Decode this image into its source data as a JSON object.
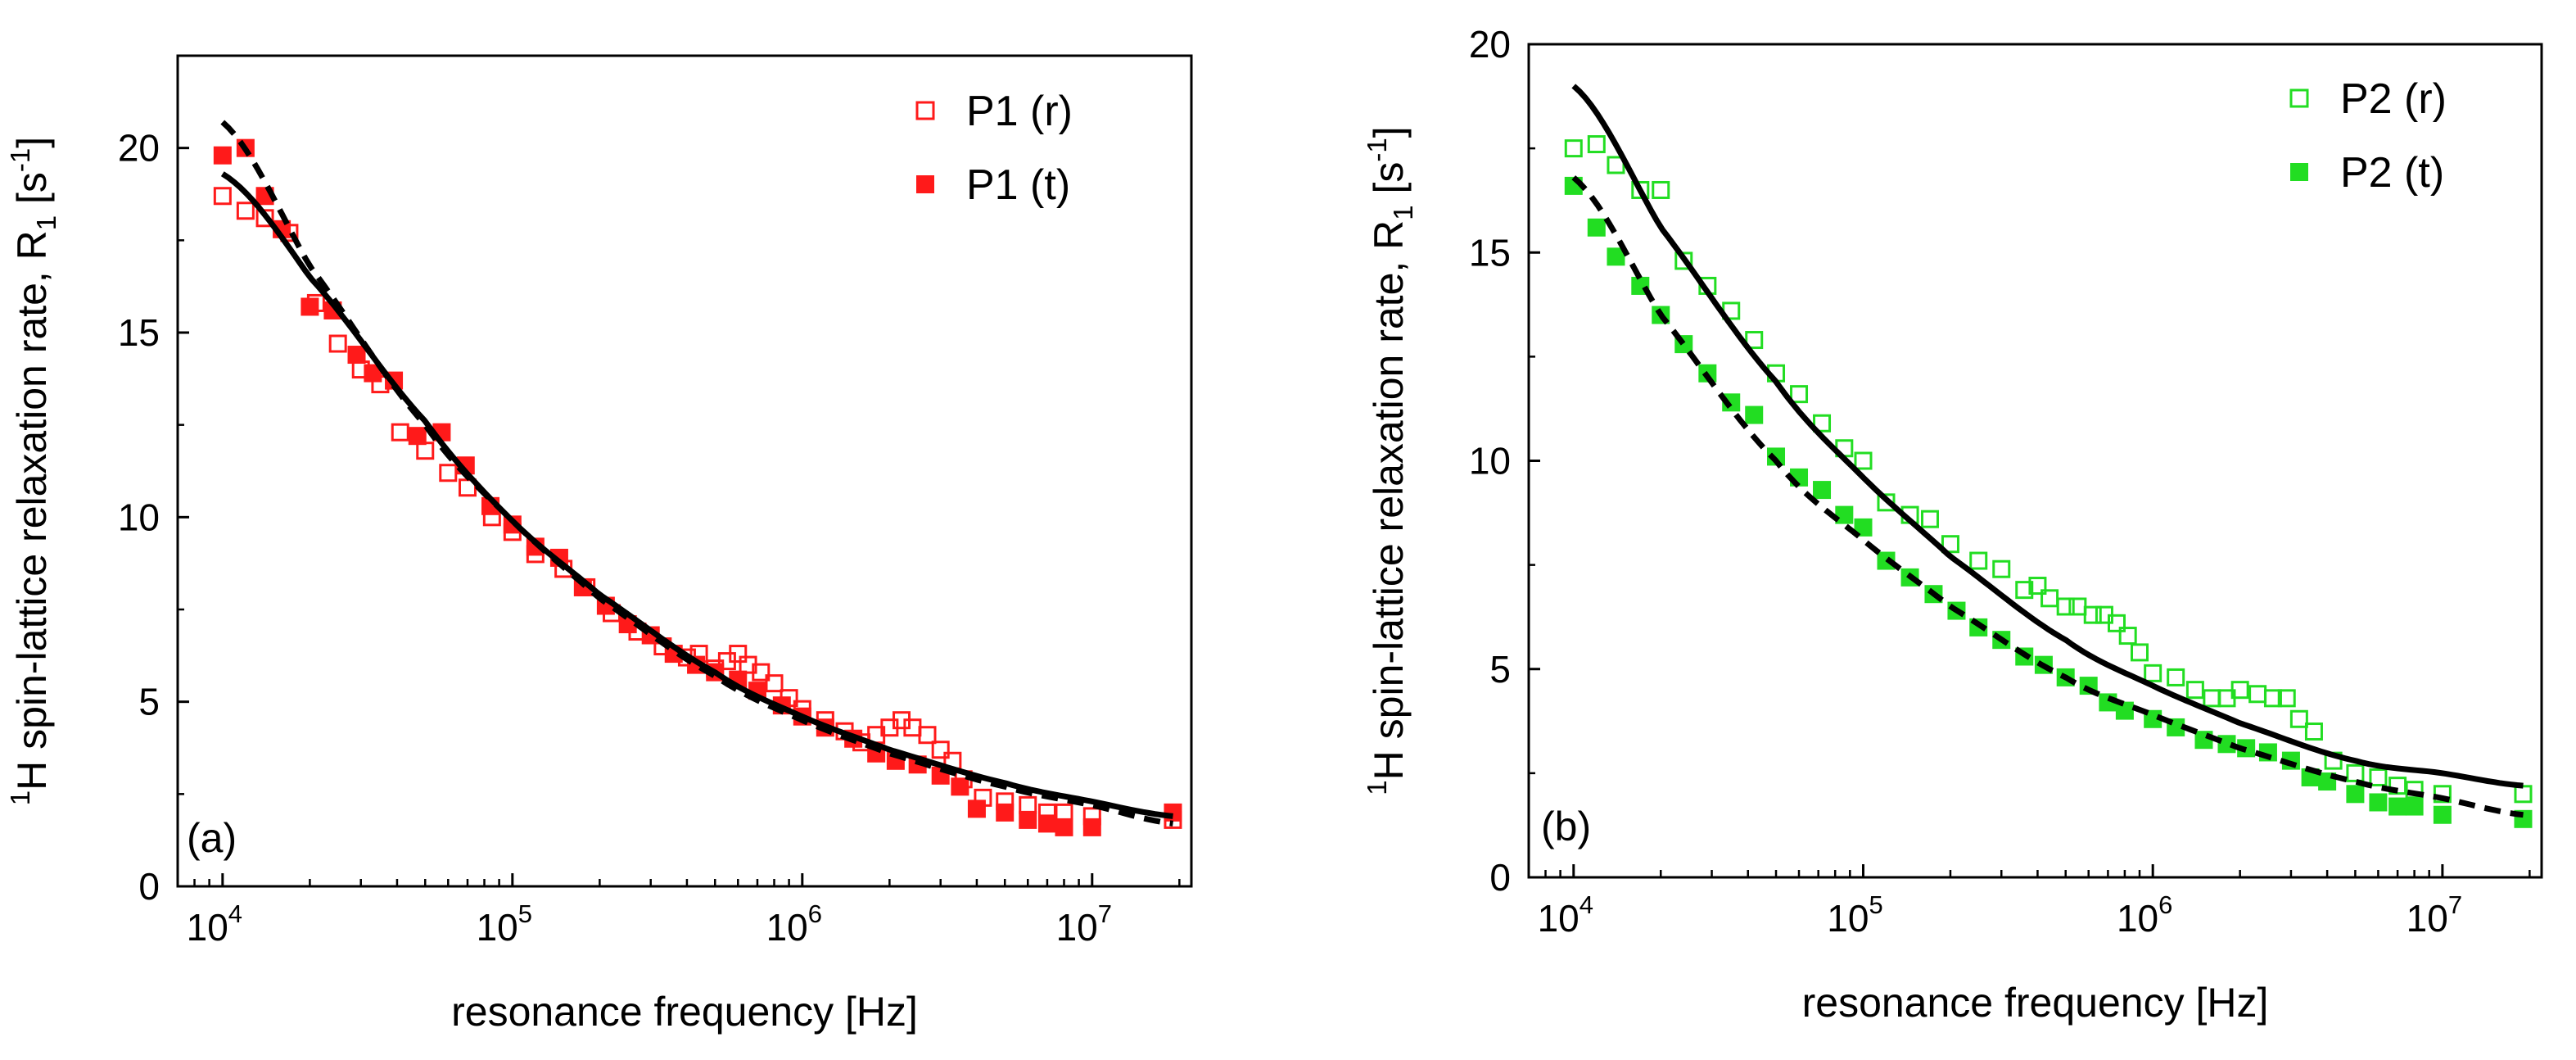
{
  "chart_data": [
    {
      "type": "scatter",
      "panel_label": "(a)",
      "xlabel": "resonance frequency [Hz]",
      "ylabel": {
        "base": "spin-lattice relaxation rate, R",
        "pre_superscript": "1",
        "pre_base": "H ",
        "subscript": "1",
        "unit_open": " [s",
        "unit_superscript": "-1",
        "unit_close": "]"
      },
      "x_scale": "log",
      "xlim": [
        7000,
        22000000
      ],
      "ylim": [
        0,
        22.5
      ],
      "x_ticks": [
        {
          "base": "10",
          "exp": "4",
          "value": 10000
        },
        {
          "base": "10",
          "exp": "5",
          "value": 100000
        },
        {
          "base": "10",
          "exp": "6",
          "value": 1000000
        },
        {
          "base": "10",
          "exp": "7",
          "value": 10000000
        }
      ],
      "y_ticks": [
        0,
        5,
        10,
        15,
        20
      ],
      "legend_position": "top-right",
      "series": [
        {
          "name": "P1 (r)",
          "marker": "open-square",
          "color": "#ff1a1a",
          "points": [
            [
              10000,
              18.7
            ],
            [
              12000,
              18.3
            ],
            [
              14000,
              18.1
            ],
            [
              17000,
              17.7
            ],
            [
              21000,
              15.8
            ],
            [
              25000,
              14.7
            ],
            [
              30000,
              14.0
            ],
            [
              35000,
              13.6
            ],
            [
              41000,
              12.3
            ],
            [
              50000,
              11.8
            ],
            [
              60000,
              11.2
            ],
            [
              70000,
              10.8
            ],
            [
              85000,
              10.0
            ],
            [
              100000,
              9.6
            ],
            [
              120000,
              9.0
            ],
            [
              150000,
              8.6
            ],
            [
              180000,
              8.1
            ],
            [
              220000,
              7.4
            ],
            [
              270000,
              6.9
            ],
            [
              330000,
              6.5
            ],
            [
              400000,
              6.2
            ],
            [
              440000,
              6.3
            ],
            [
              500000,
              5.9
            ],
            [
              550000,
              6.1
            ],
            [
              600000,
              6.3
            ],
            [
              650000,
              6.0
            ],
            [
              720000,
              5.8
            ],
            [
              800000,
              5.5
            ],
            [
              900000,
              5.1
            ],
            [
              1000000,
              4.8
            ],
            [
              1200000,
              4.5
            ],
            [
              1400000,
              4.2
            ],
            [
              1600000,
              3.9
            ],
            [
              1800000,
              4.1
            ],
            [
              2000000,
              4.3
            ],
            [
              2200000,
              4.5
            ],
            [
              2400000,
              4.3
            ],
            [
              2700000,
              4.1
            ],
            [
              3000000,
              3.7
            ],
            [
              3300000,
              3.4
            ],
            [
              3600000,
              2.9
            ],
            [
              4200000,
              2.4
            ],
            [
              5000000,
              2.3
            ],
            [
              6000000,
              2.2
            ],
            [
              7000000,
              2.0
            ],
            [
              8000000,
              2.0
            ],
            [
              10000000,
              1.9
            ],
            [
              19000000,
              1.8
            ]
          ]
        },
        {
          "name": "P1 (t)",
          "marker": "filled-square",
          "color": "#ff1a1a",
          "points": [
            [
              10000,
              19.8
            ],
            [
              12000,
              20.0
            ],
            [
              14000,
              18.7
            ],
            [
              16000,
              17.8
            ],
            [
              20000,
              15.7
            ],
            [
              24000,
              15.6
            ],
            [
              29000,
              14.4
            ],
            [
              33000,
              13.9
            ],
            [
              39000,
              13.7
            ],
            [
              47000,
              12.2
            ],
            [
              57000,
              12.3
            ],
            [
              69000,
              11.4
            ],
            [
              84000,
              10.3
            ],
            [
              100000,
              9.8
            ],
            [
              120000,
              9.2
            ],
            [
              145000,
              8.9
            ],
            [
              175000,
              8.1
            ],
            [
              210000,
              7.6
            ],
            [
              250000,
              7.1
            ],
            [
              300000,
              6.8
            ],
            [
              360000,
              6.3
            ],
            [
              430000,
              6.0
            ],
            [
              500000,
              5.8
            ],
            [
              600000,
              5.6
            ],
            [
              700000,
              5.3
            ],
            [
              850000,
              4.9
            ],
            [
              1000000,
              4.6
            ],
            [
              1200000,
              4.3
            ],
            [
              1500000,
              4.0
            ],
            [
              1800000,
              3.6
            ],
            [
              2100000,
              3.4
            ],
            [
              2500000,
              3.3
            ],
            [
              3000000,
              3.0
            ],
            [
              3500000,
              2.7
            ],
            [
              4000000,
              2.1
            ],
            [
              5000000,
              2.0
            ],
            [
              6000000,
              1.8
            ],
            [
              7000000,
              1.7
            ],
            [
              8000000,
              1.6
            ],
            [
              10000000,
              1.6
            ],
            [
              19000000,
              2.0
            ]
          ]
        }
      ],
      "fits": [
        {
          "style": "solid",
          "color": "#000000",
          "x": [
            10000,
            20000,
            50000,
            100000,
            200000,
            500000,
            1000000,
            2000000,
            5000000,
            10000000,
            19000000
          ],
          "y": [
            19.3,
            16.5,
            12.6,
            9.9,
            7.9,
            5.8,
            4.6,
            3.7,
            2.8,
            2.3,
            1.9
          ]
        },
        {
          "style": "dashed",
          "color": "#000000",
          "x": [
            10000,
            20000,
            50000,
            100000,
            200000,
            500000,
            1000000,
            2000000,
            5000000,
            10000000,
            19000000
          ],
          "y": [
            20.7,
            16.8,
            12.5,
            9.9,
            7.8,
            5.7,
            4.5,
            3.6,
            2.7,
            2.2,
            1.7
          ]
        }
      ]
    },
    {
      "type": "scatter",
      "panel_label": "(b)",
      "xlabel": "resonance frequency [Hz]",
      "ylabel": {
        "base": "spin-lattice relaxation rate, R",
        "pre_superscript": "1",
        "pre_base": "H ",
        "subscript": "1",
        "unit_open": " [s",
        "unit_superscript": "-1",
        "unit_close": "]"
      },
      "x_scale": "log",
      "xlim": [
        7000,
        22000000
      ],
      "ylim": [
        0,
        20
      ],
      "x_ticks": [
        {
          "base": "10",
          "exp": "4",
          "value": 10000
        },
        {
          "base": "10",
          "exp": "5",
          "value": 100000
        },
        {
          "base": "10",
          "exp": "6",
          "value": 1000000
        },
        {
          "base": "10",
          "exp": "7",
          "value": 10000000
        }
      ],
      "y_ticks": [
        0,
        5,
        10,
        15,
        20
      ],
      "legend_position": "top-right",
      "series": [
        {
          "name": "P2 (r)",
          "marker": "open-square",
          "color": "#22dd22",
          "points": [
            [
              10000,
              17.5
            ],
            [
              12000,
              17.6
            ],
            [
              14000,
              17.1
            ],
            [
              17000,
              16.5
            ],
            [
              20000,
              16.5
            ],
            [
              24000,
              14.8
            ],
            [
              29000,
              14.2
            ],
            [
              35000,
              13.6
            ],
            [
              42000,
              12.9
            ],
            [
              50000,
              12.1
            ],
            [
              60000,
              11.6
            ],
            [
              72000,
              10.9
            ],
            [
              86000,
              10.3
            ],
            [
              100000,
              10.0
            ],
            [
              120000,
              9.0
            ],
            [
              145000,
              8.7
            ],
            [
              170000,
              8.6
            ],
            [
              200000,
              8.0
            ],
            [
              250000,
              7.6
            ],
            [
              300000,
              7.4
            ],
            [
              360000,
              6.9
            ],
            [
              400000,
              7.0
            ],
            [
              440000,
              6.7
            ],
            [
              500000,
              6.5
            ],
            [
              550000,
              6.5
            ],
            [
              620000,
              6.3
            ],
            [
              680000,
              6.3
            ],
            [
              750000,
              6.1
            ],
            [
              820000,
              5.8
            ],
            [
              900000,
              5.4
            ],
            [
              1000000,
              4.9
            ],
            [
              1200000,
              4.8
            ],
            [
              1400000,
              4.5
            ],
            [
              1600000,
              4.3
            ],
            [
              1800000,
              4.3
            ],
            [
              2000000,
              4.5
            ],
            [
              2300000,
              4.4
            ],
            [
              2600000,
              4.3
            ],
            [
              2900000,
              4.3
            ],
            [
              3200000,
              3.8
            ],
            [
              3600000,
              3.5
            ],
            [
              4200000,
              2.8
            ],
            [
              5000000,
              2.5
            ],
            [
              6000000,
              2.4
            ],
            [
              7000000,
              2.2
            ],
            [
              8000000,
              2.1
            ],
            [
              10000000,
              2.0
            ],
            [
              19000000,
              2.0
            ]
          ]
        },
        {
          "name": "P2 (t)",
          "marker": "filled-square",
          "color": "#22dd22",
          "points": [
            [
              10000,
              16.6
            ],
            [
              12000,
              15.6
            ],
            [
              14000,
              14.9
            ],
            [
              17000,
              14.2
            ],
            [
              20000,
              13.5
            ],
            [
              24000,
              12.8
            ],
            [
              29000,
              12.1
            ],
            [
              35000,
              11.4
            ],
            [
              42000,
              11.1
            ],
            [
              50000,
              10.1
            ],
            [
              60000,
              9.6
            ],
            [
              72000,
              9.3
            ],
            [
              86000,
              8.7
            ],
            [
              100000,
              8.4
            ],
            [
              120000,
              7.6
            ],
            [
              145000,
              7.2
            ],
            [
              175000,
              6.8
            ],
            [
              210000,
              6.4
            ],
            [
              250000,
              6.0
            ],
            [
              300000,
              5.7
            ],
            [
              360000,
              5.3
            ],
            [
              420000,
              5.1
            ],
            [
              500000,
              4.8
            ],
            [
              600000,
              4.6
            ],
            [
              700000,
              4.2
            ],
            [
              800000,
              4.0
            ],
            [
              1000000,
              3.8
            ],
            [
              1200000,
              3.6
            ],
            [
              1500000,
              3.3
            ],
            [
              1800000,
              3.2
            ],
            [
              2100000,
              3.1
            ],
            [
              2500000,
              3.0
            ],
            [
              3000000,
              2.8
            ],
            [
              3500000,
              2.4
            ],
            [
              4000000,
              2.3
            ],
            [
              5000000,
              2.0
            ],
            [
              6000000,
              1.8
            ],
            [
              7000000,
              1.7
            ],
            [
              8000000,
              1.7
            ],
            [
              10000000,
              1.5
            ],
            [
              19000000,
              1.4
            ]
          ]
        }
      ],
      "fits": [
        {
          "style": "solid",
          "color": "#000000",
          "x": [
            10000,
            20000,
            50000,
            100000,
            200000,
            500000,
            1000000,
            2000000,
            5000000,
            10000000,
            19000000
          ],
          "y": [
            19.0,
            15.6,
            11.9,
            9.6,
            7.7,
            5.7,
            4.6,
            3.7,
            2.8,
            2.5,
            2.2
          ]
        },
        {
          "style": "dashed",
          "color": "#000000",
          "x": [
            10000,
            20000,
            50000,
            100000,
            200000,
            500000,
            1000000,
            2000000,
            5000000,
            10000000,
            19000000
          ],
          "y": [
            16.8,
            13.5,
            10.0,
            8.1,
            6.5,
            4.8,
            3.9,
            3.1,
            2.3,
            1.9,
            1.5
          ]
        }
      ]
    }
  ]
}
